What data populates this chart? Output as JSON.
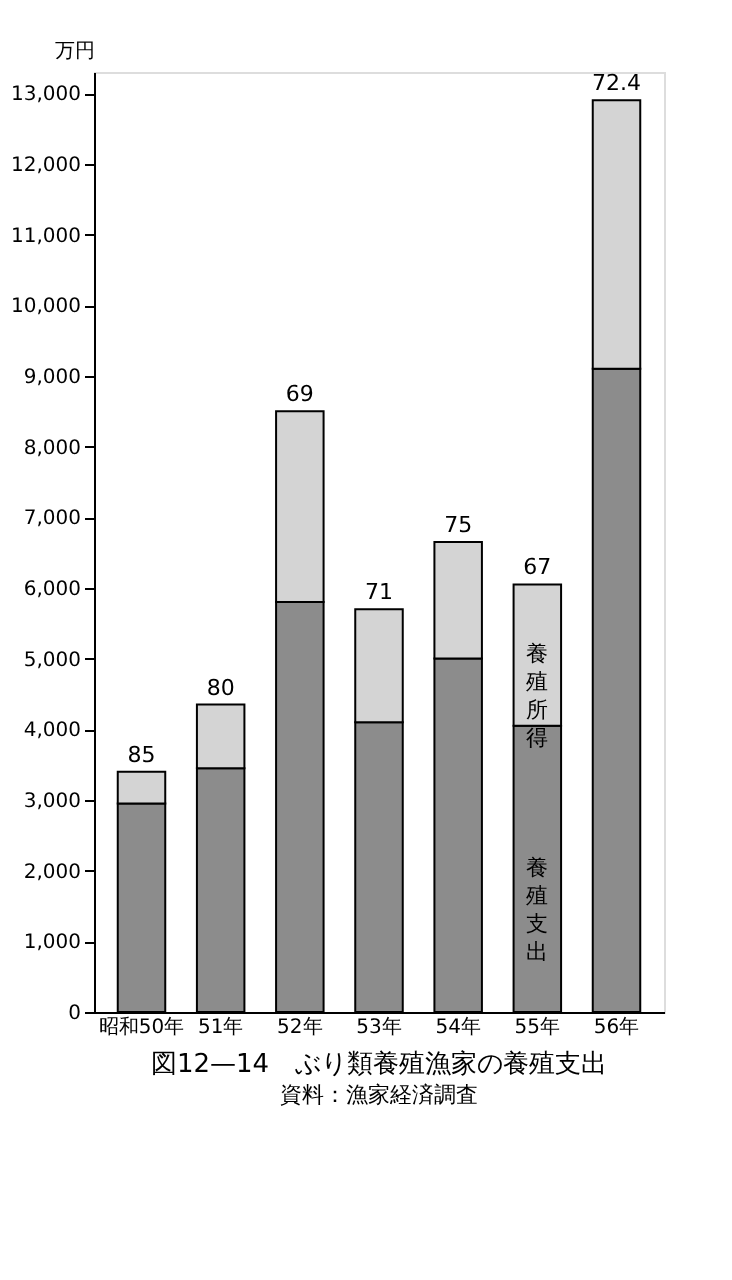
{
  "chart_data": {
    "type": "bar",
    "stacked": true,
    "title": "図12—14　ぶり類養殖漁家の養殖支出",
    "annotations": [
      "資料：漁家経済調査",
      {
        "text": "85",
        "x": "昭和50年",
        "y": 3400
      },
      {
        "text": "80",
        "x": "51年",
        "y": 4350
      },
      {
        "text": "69",
        "x": "52年",
        "y": 8500
      },
      {
        "text": "71",
        "x": "53年",
        "y": 5700
      },
      {
        "text": "75",
        "x": "54年",
        "y": 6650
      },
      {
        "text": "67",
        "x": "55年",
        "y": 6050
      },
      {
        "text": "72.4",
        "x": "56年",
        "y": 12900
      }
    ],
    "ylabel": "万円",
    "categories": [
      "昭和50年",
      "51年",
      "52年",
      "53年",
      "54年",
      "55年",
      "56年"
    ],
    "series": [
      {
        "name": "養殖支出",
        "color": "#8c8c8c",
        "values": [
          2950,
          3450,
          5800,
          4100,
          5000,
          4050,
          9100
        ]
      },
      {
        "name": "養殖所得",
        "color": "#d4d4d4",
        "values": [
          450,
          900,
          2700,
          1600,
          1650,
          2000,
          3800
        ]
      }
    ],
    "ylim": [
      0,
      13300
    ],
    "yticks": [
      {
        "value": 0,
        "label": "0"
      },
      {
        "value": 1000,
        "label": "1,000"
      },
      {
        "value": 2000,
        "label": "2,000"
      },
      {
        "value": 3000,
        "label": "3,000"
      },
      {
        "value": 4000,
        "label": "4,000"
      },
      {
        "value": 5000,
        "label": "5,000"
      },
      {
        "value": 6000,
        "label": "6,000"
      },
      {
        "value": 7000,
        "label": "7,000"
      },
      {
        "value": 8000,
        "label": "8,000"
      },
      {
        "value": 9000,
        "label": "9,000"
      },
      {
        "value": 10000,
        "label": "10,000"
      },
      {
        "value": 11000,
        "label": "11,000"
      },
      {
        "value": 12000,
        "label": "12,000"
      },
      {
        "value": 13000,
        "label": "13,000"
      }
    ],
    "grid": false,
    "legend": false
  }
}
